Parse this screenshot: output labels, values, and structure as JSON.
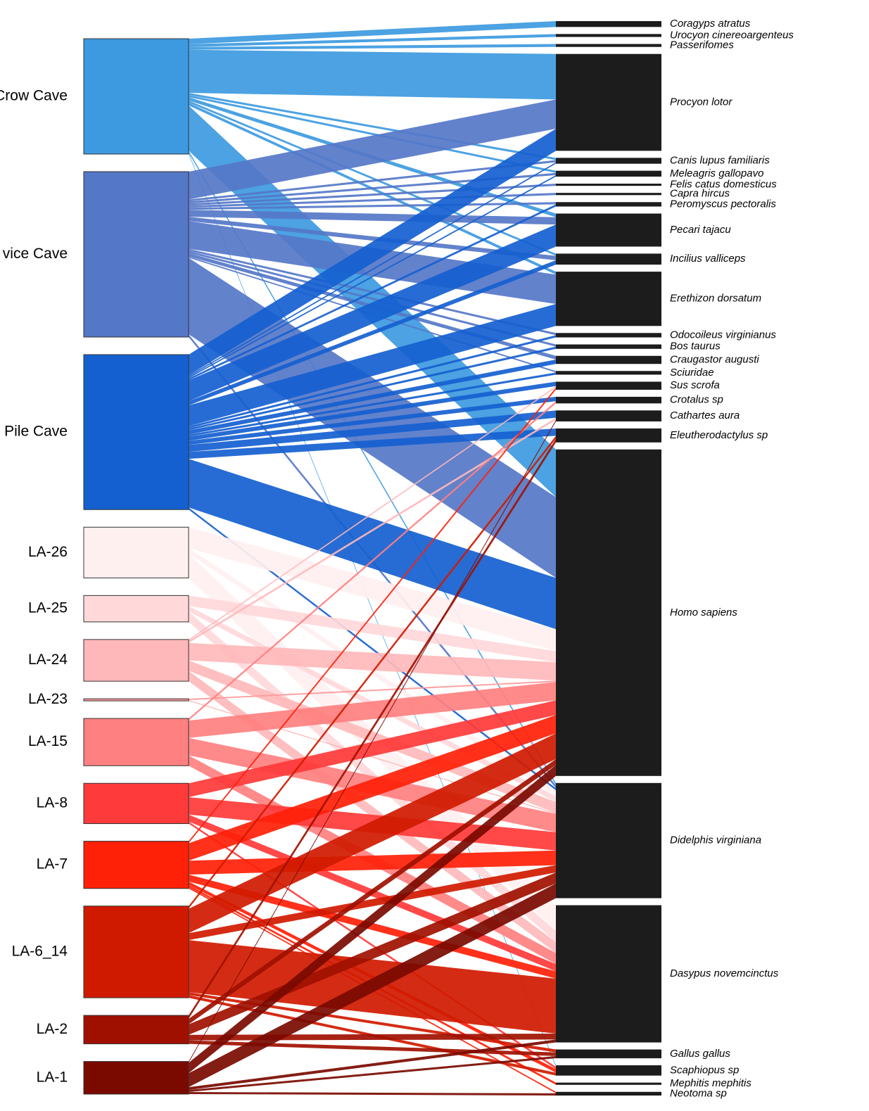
{
  "chart_data": {
    "type": "sankey",
    "sources": [
      {
        "name": "Crow Cave",
        "color": "#3d9ae0"
      },
      {
        "name": "vice Cave",
        "color": "#5577c8"
      },
      {
        "name": "Pile Cave",
        "color": "#1560d0"
      },
      {
        "name": "LA-26",
        "color": "#fff0f0"
      },
      {
        "name": "LA-25",
        "color": "#ffd8da"
      },
      {
        "name": "LA-24",
        "color": "#ffb8ba"
      },
      {
        "name": "LA-23",
        "color": "#ff9a9a"
      },
      {
        "name": "LA-15",
        "color": "#ff8080"
      },
      {
        "name": "LA-8",
        "color": "#ff3a3a"
      },
      {
        "name": "LA-7",
        "color": "#ff2008"
      },
      {
        "name": "LA-6_14",
        "color": "#d01a00"
      },
      {
        "name": "LA-2",
        "color": "#a01000"
      },
      {
        "name": "LA-1",
        "color": "#7a0a00"
      }
    ],
    "targets": [
      "Coragyps atratus",
      "Urocyon cinereoargenteus",
      "Passerifomes",
      "Procyon lotor",
      "Canis lupus familiaris",
      "Meleagris gallopavo",
      "Felis catus domesticus",
      "Capra hircus",
      "Peromyscus pectoralis",
      "Pecari tajacu",
      "Incilius valliceps",
      "Erethizon dorsatum",
      "Odocoileus virginianus",
      "Bos taurus",
      "Craugastor augusti",
      "Sciuridae",
      "Sus scrofa",
      "Crotalus sp",
      "Cathartes aura",
      "Eleutherodactylus sp",
      "Homo sapiens",
      "Didelphis virginiana",
      "Dasypus novemcinctus",
      "Gallus gallus",
      "Scaphiopus sp",
      "Mephitis mephitis",
      "Neotoma sp"
    ],
    "target_color": "#1c1c1c",
    "links": [
      {
        "source": 0,
        "target": 0,
        "value": 8
      },
      {
        "source": 0,
        "target": 1,
        "value": 4
      },
      {
        "source": 0,
        "target": 2,
        "value": 4
      },
      {
        "source": 0,
        "target": 3,
        "value": 62
      },
      {
        "source": 0,
        "target": 4,
        "value": 3
      },
      {
        "source": 0,
        "target": 5,
        "value": 3
      },
      {
        "source": 0,
        "target": 9,
        "value": 5
      },
      {
        "source": 0,
        "target": 10,
        "value": 3
      },
      {
        "source": 0,
        "target": 11,
        "value": 4
      },
      {
        "source": 0,
        "target": 20,
        "value": 65
      },
      {
        "source": 0,
        "target": 21,
        "value": 3
      },
      {
        "source": 0,
        "target": 24,
        "value": 2
      },
      {
        "source": 1,
        "target": 3,
        "value": 40
      },
      {
        "source": 1,
        "target": 4,
        "value": 3
      },
      {
        "source": 1,
        "target": 5,
        "value": 3
      },
      {
        "source": 1,
        "target": 6,
        "value": 3
      },
      {
        "source": 1,
        "target": 7,
        "value": 3
      },
      {
        "source": 1,
        "target": 8,
        "value": 3
      },
      {
        "source": 1,
        "target": 9,
        "value": 10
      },
      {
        "source": 1,
        "target": 10,
        "value": 6
      },
      {
        "source": 1,
        "target": 11,
        "value": 40
      },
      {
        "source": 1,
        "target": 12,
        "value": 3
      },
      {
        "source": 1,
        "target": 13,
        "value": 3
      },
      {
        "source": 1,
        "target": 14,
        "value": 5
      },
      {
        "source": 1,
        "target": 15,
        "value": 2
      },
      {
        "source": 1,
        "target": 20,
        "value": 110
      },
      {
        "source": 1,
        "target": 21,
        "value": 4
      },
      {
        "source": 2,
        "target": 3,
        "value": 30
      },
      {
        "source": 2,
        "target": 4,
        "value": 2
      },
      {
        "source": 2,
        "target": 5,
        "value": 2
      },
      {
        "source": 2,
        "target": 8,
        "value": 3
      },
      {
        "source": 2,
        "target": 9,
        "value": 30
      },
      {
        "source": 2,
        "target": 10,
        "value": 6
      },
      {
        "source": 2,
        "target": 11,
        "value": 30
      },
      {
        "source": 2,
        "target": 12,
        "value": 3
      },
      {
        "source": 2,
        "target": 13,
        "value": 3
      },
      {
        "source": 2,
        "target": 14,
        "value": 6
      },
      {
        "source": 2,
        "target": 15,
        "value": 3
      },
      {
        "source": 2,
        "target": 16,
        "value": 6
      },
      {
        "source": 2,
        "target": 17,
        "value": 6
      },
      {
        "source": 2,
        "target": 18,
        "value": 10
      },
      {
        "source": 2,
        "target": 19,
        "value": 10
      },
      {
        "source": 2,
        "target": 20,
        "value": 70
      },
      {
        "source": 2,
        "target": 21,
        "value": 3
      },
      {
        "source": 3,
        "target": 20,
        "value": 30
      },
      {
        "source": 3,
        "target": 21,
        "value": 8
      },
      {
        "source": 3,
        "target": 22,
        "value": 35
      },
      {
        "source": 4,
        "target": 20,
        "value": 15
      },
      {
        "source": 4,
        "target": 21,
        "value": 8
      },
      {
        "source": 4,
        "target": 22,
        "value": 15
      },
      {
        "source": 5,
        "target": 16,
        "value": 2
      },
      {
        "source": 5,
        "target": 18,
        "value": 3
      },
      {
        "source": 5,
        "target": 20,
        "value": 25
      },
      {
        "source": 5,
        "target": 21,
        "value": 15
      },
      {
        "source": 5,
        "target": 22,
        "value": 15
      },
      {
        "source": 6,
        "target": 20,
        "value": 2
      },
      {
        "source": 6,
        "target": 21,
        "value": 1
      },
      {
        "source": 7,
        "target": 17,
        "value": 3
      },
      {
        "source": 7,
        "target": 20,
        "value": 25
      },
      {
        "source": 7,
        "target": 21,
        "value": 25
      },
      {
        "source": 7,
        "target": 22,
        "value": 15
      },
      {
        "source": 8,
        "target": 20,
        "value": 20
      },
      {
        "source": 8,
        "target": 21,
        "value": 25
      },
      {
        "source": 8,
        "target": 22,
        "value": 10
      },
      {
        "source": 8,
        "target": 24,
        "value": 3
      },
      {
        "source": 9,
        "target": 16,
        "value": 3
      },
      {
        "source": 9,
        "target": 20,
        "value": 25
      },
      {
        "source": 9,
        "target": 21,
        "value": 20
      },
      {
        "source": 9,
        "target": 22,
        "value": 10
      },
      {
        "source": 9,
        "target": 24,
        "value": 5
      },
      {
        "source": 9,
        "target": 25,
        "value": 3
      },
      {
        "source": 9,
        "target": 26,
        "value": 2
      },
      {
        "source": 10,
        "target": 19,
        "value": 4
      },
      {
        "source": 10,
        "target": 20,
        "value": 35
      },
      {
        "source": 10,
        "target": 21,
        "value": 10
      },
      {
        "source": 10,
        "target": 22,
        "value": 75
      },
      {
        "source": 10,
        "target": 23,
        "value": 4
      },
      {
        "source": 10,
        "target": 24,
        "value": 4
      },
      {
        "source": 11,
        "target": 19,
        "value": 5
      },
      {
        "source": 11,
        "target": 20,
        "value": 8
      },
      {
        "source": 11,
        "target": 21,
        "value": 15
      },
      {
        "source": 11,
        "target": 22,
        "value": 8
      },
      {
        "source": 11,
        "target": 23,
        "value": 5
      },
      {
        "source": 12,
        "target": 18,
        "value": 2
      },
      {
        "source": 12,
        "target": 20,
        "value": 15
      },
      {
        "source": 12,
        "target": 21,
        "value": 20
      },
      {
        "source": 12,
        "target": 22,
        "value": 4
      },
      {
        "source": 12,
        "target": 23,
        "value": 3
      },
      {
        "source": 12,
        "target": 26,
        "value": 3
      }
    ]
  }
}
